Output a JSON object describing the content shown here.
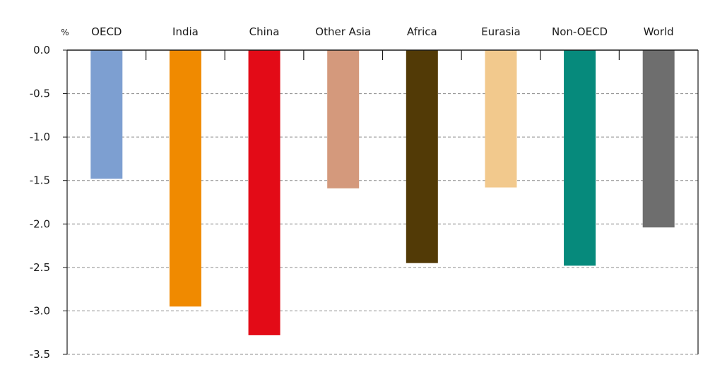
{
  "chart_data": {
    "type": "bar",
    "unit_label": "%",
    "categories": [
      "OECD",
      "India",
      "China",
      "Other Asia",
      "Africa",
      "Eurasia",
      "Non-OECD",
      "World"
    ],
    "values": [
      -1.48,
      -2.95,
      -3.28,
      -1.59,
      -2.45,
      -1.58,
      -2.48,
      -2.04
    ],
    "colors": [
      "#7d9fd1",
      "#f08a00",
      "#e30b17",
      "#d4997c",
      "#523a06",
      "#f2c98d",
      "#068a7c",
      "#6e6e6e"
    ],
    "ylim": [
      -3.5,
      0.0
    ],
    "yticks": [
      0.0,
      -0.5,
      -1.0,
      -1.5,
      -2.0,
      -2.5,
      -3.0,
      -3.5
    ],
    "ytick_labels": [
      "0.0",
      "-0.5",
      "-1.0",
      "-1.5",
      "-2.0",
      "-2.5",
      "-3.0",
      "-3.5"
    ],
    "grid": true,
    "grid_style": "dashed",
    "category_labels_position": "top",
    "title": "",
    "xlabel": "",
    "ylabel": ""
  }
}
